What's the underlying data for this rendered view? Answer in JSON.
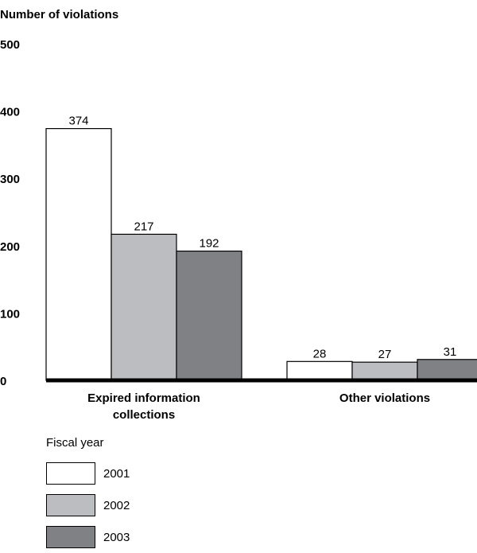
{
  "chart_data": {
    "type": "bar",
    "ylabel": "Number of violations",
    "ylim": [
      0,
      500
    ],
    "yticks": [
      0,
      100,
      200,
      300,
      400,
      500
    ],
    "categories": [
      "Expired information collections",
      "Other violations"
    ],
    "category_lines": [
      [
        "Expired information",
        "collections"
      ],
      [
        "Other violations"
      ]
    ],
    "legend_title": "Fiscal year",
    "legend_placement": "bottom-left",
    "grid": false,
    "series": [
      {
        "name": "2001",
        "values": [
          374,
          28
        ],
        "color": "#ffffff"
      },
      {
        "name": "2002",
        "values": [
          217,
          27
        ],
        "color": "#bcbdc0"
      },
      {
        "name": "2003",
        "values": [
          192,
          31
        ],
        "color": "#808184"
      }
    ]
  }
}
